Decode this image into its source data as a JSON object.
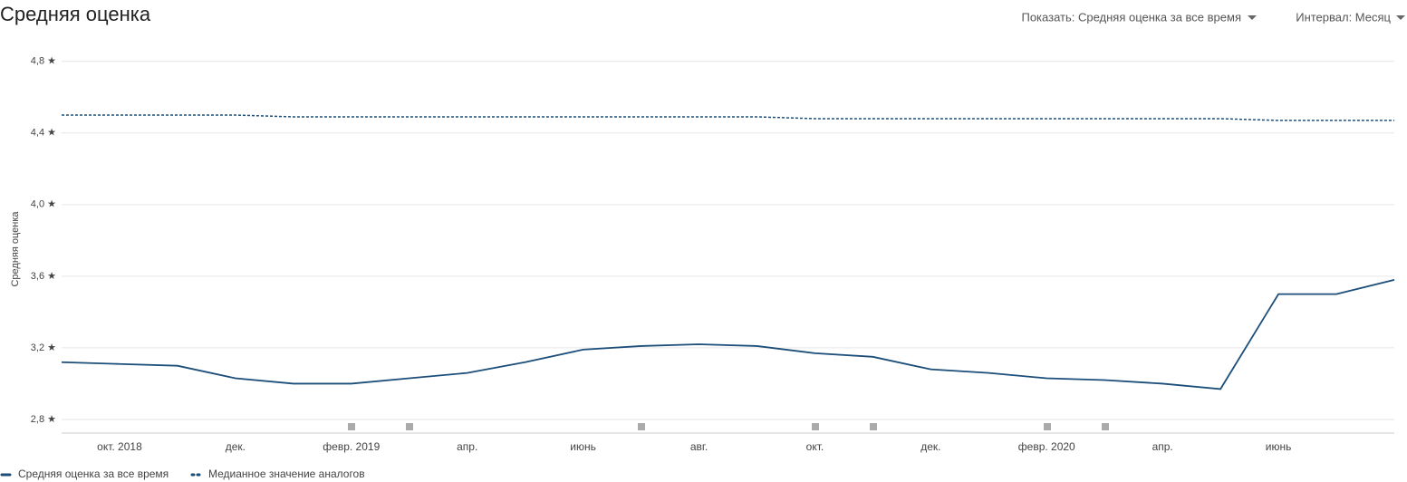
{
  "toolbar": {
    "show": "Показать: Средняя оценка за все время",
    "interval": "Интервал: Месяц"
  },
  "chart_data": {
    "type": "line",
    "title": "Средняя оценка",
    "y_label": "Средняя оценка",
    "categories": [
      null,
      "окт. 2018",
      null,
      "дек.",
      null,
      "февр. 2019",
      null,
      "апр.",
      null,
      "июнь",
      null,
      "авг.",
      null,
      "окт.",
      null,
      "дек.",
      null,
      "февр. 2020",
      null,
      "апр.",
      null,
      "июнь",
      null,
      null
    ],
    "series": [
      {
        "name": "Средняя оценка за все время",
        "color": "#1c4e7a",
        "style": "solid",
        "values": [
          3.12,
          3.11,
          3.1,
          3.03,
          3.0,
          3.0,
          3.03,
          3.06,
          3.12,
          3.19,
          3.21,
          3.22,
          3.21,
          3.17,
          3.15,
          3.08,
          3.06,
          3.03,
          3.02,
          3.0,
          2.97,
          3.5,
          3.5,
          3.58
        ]
      },
      {
        "name": "Медианное значение аналогов",
        "color": "#1c4e7a",
        "style": "dotted",
        "values": [
          4.5,
          4.5,
          4.5,
          4.5,
          4.49,
          4.49,
          4.49,
          4.49,
          4.49,
          4.49,
          4.49,
          4.49,
          4.49,
          4.48,
          4.48,
          4.48,
          4.48,
          4.48,
          4.48,
          4.48,
          4.48,
          4.47,
          4.47,
          4.47
        ]
      }
    ],
    "ylim": [
      2.724,
      4.92
    ],
    "yticks": [
      {
        "value": 2.8,
        "label": "2,8 ★"
      },
      {
        "value": 3.2,
        "label": "3,2 ★"
      },
      {
        "value": 3.6,
        "label": "3,6 ★"
      },
      {
        "value": 4.0,
        "label": "4,0 ★"
      },
      {
        "value": 4.4,
        "label": "4,4 ★"
      },
      {
        "value": 4.8,
        "label": "4,8 ★"
      }
    ],
    "grid": true
  }
}
